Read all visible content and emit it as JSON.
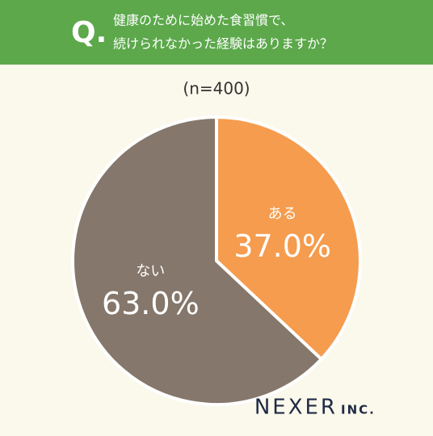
{
  "header": {
    "marker": "Q.",
    "lines": [
      "健康のために始めた食習慣で、",
      "続けられなかった経験はありますか？"
    ]
  },
  "chart_data": {
    "type": "pie",
    "subtitle": "(n=400)",
    "categories": [
      "ある",
      "ない"
    ],
    "values": [
      37.0,
      63.0
    ],
    "value_labels": [
      "37.0%",
      "63.0%"
    ],
    "colors": [
      "#f59c4e",
      "#85776b"
    ]
  },
  "footer": {
    "logo": "NEXER",
    "logo_suffix": "INC."
  }
}
